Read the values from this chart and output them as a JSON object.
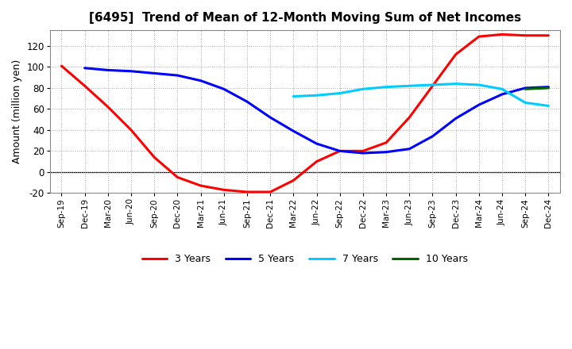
{
  "title": "[6495]  Trend of Mean of 12-Month Moving Sum of Net Incomes",
  "ylabel": "Amount (million yen)",
  "ylim": [
    -20,
    135
  ],
  "yticks": [
    -20,
    0,
    20,
    40,
    60,
    80,
    100,
    120
  ],
  "background_color": "#ffffff",
  "plot_bg_color": "#ffffff",
  "grid_color": "#aaaaaa",
  "x_labels": [
    "Sep-19",
    "Dec-19",
    "Mar-20",
    "Jun-20",
    "Sep-20",
    "Dec-20",
    "Mar-21",
    "Jun-21",
    "Sep-21",
    "Dec-21",
    "Mar-22",
    "Jun-22",
    "Sep-22",
    "Dec-22",
    "Mar-23",
    "Jun-23",
    "Sep-23",
    "Dec-23",
    "Mar-24",
    "Jun-24",
    "Sep-24",
    "Dec-24"
  ],
  "series": {
    "3 Years": {
      "color": "#ff0000",
      "data": [
        [
          "Sep-19",
          101
        ],
        [
          "Dec-19",
          82
        ],
        [
          "Mar-20",
          62
        ],
        [
          "Jun-20",
          40
        ],
        [
          "Sep-20",
          14
        ],
        [
          "Dec-20",
          -5
        ],
        [
          "Mar-21",
          -13
        ],
        [
          "Jun-21",
          -17
        ],
        [
          "Sep-21",
          -19
        ],
        [
          "Dec-21",
          -19
        ],
        [
          "Mar-22",
          -8
        ],
        [
          "Jun-22",
          10
        ],
        [
          "Sep-22",
          20
        ],
        [
          "Dec-22",
          20
        ],
        [
          "Mar-23",
          28
        ],
        [
          "Jun-23",
          52
        ],
        [
          "Sep-23",
          82
        ],
        [
          "Dec-23",
          112
        ],
        [
          "Mar-24",
          129
        ],
        [
          "Jun-24",
          131
        ],
        [
          "Sep-24",
          130
        ],
        [
          "Dec-24",
          130
        ]
      ]
    },
    "5 Years": {
      "color": "#0000ff",
      "data": [
        [
          "Dec-19",
          99
        ],
        [
          "Mar-20",
          97
        ],
        [
          "Jun-20",
          96
        ],
        [
          "Sep-20",
          94
        ],
        [
          "Dec-20",
          92
        ],
        [
          "Mar-21",
          87
        ],
        [
          "Jun-21",
          79
        ],
        [
          "Sep-21",
          67
        ],
        [
          "Dec-21",
          52
        ],
        [
          "Mar-22",
          39
        ],
        [
          "Jun-22",
          27
        ],
        [
          "Sep-22",
          20
        ],
        [
          "Dec-22",
          18
        ],
        [
          "Mar-23",
          19
        ],
        [
          "Jun-23",
          22
        ],
        [
          "Sep-23",
          34
        ],
        [
          "Dec-23",
          51
        ],
        [
          "Mar-24",
          64
        ],
        [
          "Jun-24",
          74
        ],
        [
          "Sep-24",
          80
        ],
        [
          "Dec-24",
          81
        ]
      ]
    },
    "7 Years": {
      "color": "#00ccff",
      "data": [
        [
          "Mar-22",
          72
        ],
        [
          "Jun-22",
          73
        ],
        [
          "Sep-22",
          75
        ],
        [
          "Dec-22",
          79
        ],
        [
          "Mar-23",
          81
        ],
        [
          "Jun-23",
          82
        ],
        [
          "Sep-23",
          83
        ],
        [
          "Dec-23",
          84
        ],
        [
          "Mar-24",
          83
        ],
        [
          "Jun-24",
          79
        ],
        [
          "Sep-24",
          66
        ],
        [
          "Dec-24",
          63
        ]
      ]
    },
    "10 Years": {
      "color": "#006600",
      "data": [
        [
          "Sep-24",
          79
        ],
        [
          "Dec-24",
          80
        ]
      ]
    }
  },
  "legend_labels": [
    "3 Years",
    "5 Years",
    "7 Years",
    "10 Years"
  ]
}
